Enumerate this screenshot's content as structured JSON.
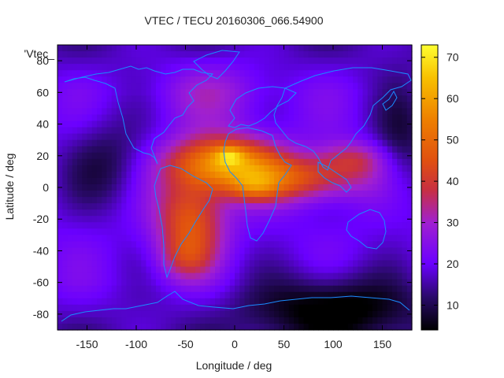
{
  "chart_data": {
    "type": "heatmap",
    "title": "VTEC / TECU 20160306_066.54900",
    "xlabel": "Longitude / deg",
    "ylabel": "Latitude / deg",
    "legend_key": "'Vtec_",
    "xlim": [
      -180,
      180
    ],
    "ylim": [
      -90,
      90
    ],
    "x_ticks": [
      -150,
      -100,
      -50,
      0,
      50,
      100,
      150
    ],
    "y_ticks": [
      -80,
      -60,
      -40,
      -20,
      0,
      20,
      40,
      60,
      80
    ],
    "colorbar": {
      "range": [
        4,
        73
      ],
      "ticks": [
        10,
        20,
        30,
        40,
        50,
        60,
        70
      ],
      "stops": [
        {
          "v": 4,
          "color": "#000000"
        },
        {
          "v": 12,
          "color": "#2a0a6a"
        },
        {
          "v": 20,
          "color": "#6a00ff"
        },
        {
          "v": 30,
          "color": "#a020d0"
        },
        {
          "v": 38,
          "color": "#c83040"
        },
        {
          "v": 45,
          "color": "#e05010"
        },
        {
          "v": 55,
          "color": "#ee8000"
        },
        {
          "v": 65,
          "color": "#f8c000"
        },
        {
          "v": 73,
          "color": "#ffff30"
        }
      ]
    },
    "field_model": {
      "background_tecu": 20,
      "components": [
        {
          "lon": -10,
          "lat": 15,
          "amp": 38,
          "sig_lon": 40,
          "sig_lat": 12
        },
        {
          "lon": -5,
          "lat": 20,
          "amp": 14,
          "sig_lon": 10,
          "sig_lat": 4
        },
        {
          "lon": 20,
          "lat": 0,
          "amp": 12,
          "sig_lon": 18,
          "sig_lat": 6
        },
        {
          "lon": 70,
          "lat": 5,
          "amp": 22,
          "sig_lon": 45,
          "sig_lat": 10
        },
        {
          "lon": -45,
          "lat": -20,
          "amp": 26,
          "sig_lon": 25,
          "sig_lat": 18
        },
        {
          "lon": -50,
          "lat": -45,
          "amp": 12,
          "sig_lon": 20,
          "sig_lat": 10
        },
        {
          "lon": 120,
          "lat": 18,
          "amp": 14,
          "sig_lon": 25,
          "sig_lat": 8
        },
        {
          "lon": -20,
          "lat": 60,
          "amp": 8,
          "sig_lon": 40,
          "sig_lat": 15
        },
        {
          "lon": 100,
          "lat": -75,
          "amp": -16,
          "sig_lon": 60,
          "sig_lat": 15
        },
        {
          "lon": -130,
          "lat": 15,
          "amp": -10,
          "sig_lon": 30,
          "sig_lat": 20
        },
        {
          "lon": 170,
          "lat": 30,
          "amp": -10,
          "sig_lon": 20,
          "sig_lat": 25
        }
      ]
    },
    "colors": {
      "coastline": "#1a8cff",
      "frame": "#000000"
    }
  }
}
